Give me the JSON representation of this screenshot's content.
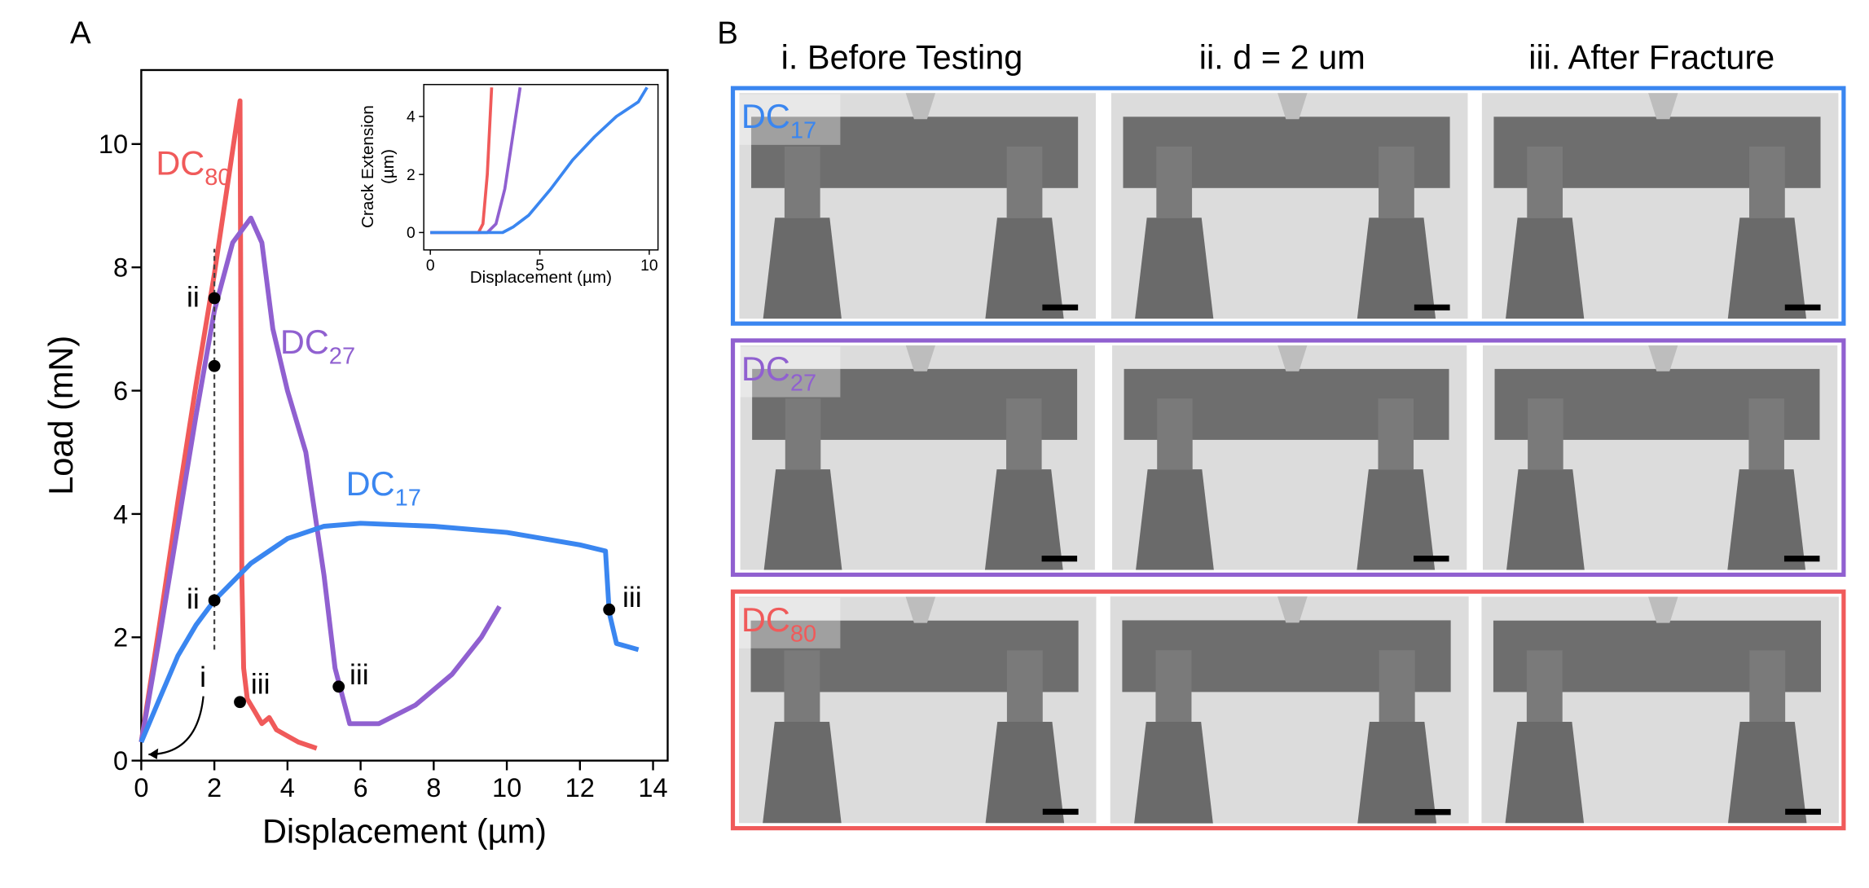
{
  "panels": {
    "a": "A",
    "b": "B"
  },
  "chart_data": [
    {
      "type": "line",
      "xlabel": "Displacement (µm)",
      "ylabel": "Load (mN)",
      "xlim": [
        0,
        14.4
      ],
      "ylim": [
        0,
        11.2
      ],
      "xticks": [
        0,
        2,
        4,
        6,
        8,
        10,
        12,
        14
      ],
      "yticks": [
        0,
        2,
        4,
        6,
        8,
        10
      ],
      "series": [
        {
          "name": [
            "DC",
            "80"
          ],
          "color": "#f05a5a",
          "x": [
            0,
            0.5,
            1,
            1.5,
            2,
            2.5,
            2.7,
            2.75,
            2.8,
            2.9,
            3.1,
            3.3,
            3.5,
            3.7,
            4.0,
            4.3,
            4.8
          ],
          "values": [
            0.3,
            2.2,
            4.2,
            6.1,
            7.9,
            9.9,
            10.7,
            3,
            1.5,
            1.0,
            0.8,
            0.6,
            0.7,
            0.5,
            0.4,
            0.3,
            0.2
          ]
        },
        {
          "name": [
            "DC",
            "27"
          ],
          "color": "#9060d0",
          "x": [
            0,
            0.5,
            1,
            1.5,
            2,
            2.5,
            3,
            3.3,
            3.6,
            4,
            4.5,
            5,
            5.3,
            5.7,
            6.5,
            7.5,
            8.5,
            9.3,
            9.8
          ],
          "values": [
            0.3,
            2.0,
            3.8,
            5.6,
            7.3,
            8.4,
            8.8,
            8.4,
            7.0,
            6.0,
            5.0,
            3.0,
            1.5,
            0.6,
            0.6,
            0.9,
            1.4,
            2.0,
            2.5
          ]
        },
        {
          "name": [
            "DC",
            "17"
          ],
          "color": "#3a86f0",
          "x": [
            0,
            0.5,
            1,
            1.5,
            2,
            3,
            4,
            5,
            6,
            8,
            10,
            12,
            12.7,
            12.8,
            13,
            13.6
          ],
          "values": [
            0.3,
            1.0,
            1.7,
            2.2,
            2.6,
            3.2,
            3.6,
            3.8,
            3.85,
            3.8,
            3.7,
            3.5,
            3.4,
            2.4,
            1.9,
            1.8
          ]
        }
      ],
      "reference_line": {
        "x": 2,
        "y": [
          1.8,
          8.3
        ]
      },
      "markers": [
        {
          "x": 2,
          "y": 7.5,
          "label": "ii"
        },
        {
          "x": 2,
          "y": 6.4
        },
        {
          "x": 2,
          "y": 2.6,
          "label": "ii"
        },
        {
          "x": 2.7,
          "y": 0.95,
          "label": "iii"
        },
        {
          "x": 5.4,
          "y": 1.2,
          "label": "iii"
        },
        {
          "x": 12.8,
          "y": 2.45,
          "label": "iii"
        }
      ],
      "annotations": [
        {
          "text": "i",
          "x": 1.6,
          "y": 1.2
        }
      ]
    },
    {
      "type": "line",
      "xlabel": "Displacement (µm)",
      "ylabel": [
        "Crack Extension",
        "(µm)"
      ],
      "xlim": [
        -0.3,
        10.4
      ],
      "ylim": [
        -0.6,
        5.1
      ],
      "xticks": [
        0,
        5,
        10
      ],
      "yticks": [
        0,
        2,
        4
      ],
      "series": [
        {
          "color": "#f05a5a",
          "x": [
            0,
            2.2,
            2.4,
            2.6,
            2.8
          ],
          "values": [
            0,
            0,
            0.3,
            2,
            5
          ]
        },
        {
          "color": "#9060d0",
          "x": [
            0,
            2.6,
            3.0,
            3.4,
            3.8,
            4.1
          ],
          "values": [
            0,
            0,
            0.3,
            1.5,
            3.5,
            5
          ]
        },
        {
          "color": "#3a86f0",
          "x": [
            0,
            3.3,
            3.8,
            4.5,
            5.5,
            6.5,
            7.5,
            8.5,
            9.5,
            9.9
          ],
          "values": [
            0,
            0,
            0.2,
            0.6,
            1.5,
            2.5,
            3.3,
            4,
            4.5,
            5
          ]
        }
      ]
    }
  ],
  "images": {
    "column_titles": [
      "i. Before Testing",
      "ii. d = 2 um",
      "iii. After Fracture"
    ],
    "rows": [
      {
        "label": [
          "DC",
          "17"
        ],
        "color": "#3a86f0"
      },
      {
        "label": [
          "DC",
          "27"
        ],
        "color": "#9060d0"
      },
      {
        "label": [
          "DC",
          "80"
        ],
        "color": "#f05a5a"
      }
    ]
  }
}
